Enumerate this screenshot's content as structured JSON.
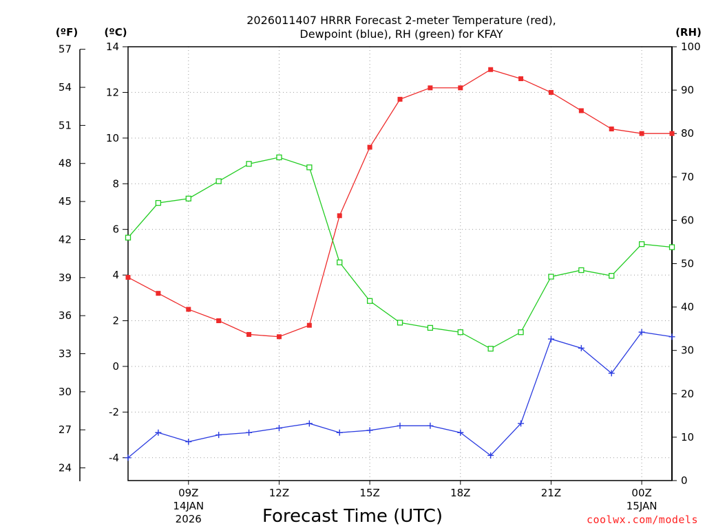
{
  "chart_data": {
    "type": "line",
    "title_line1": "2026011407 HRRR Forecast 2-meter Temperature (red),",
    "title_line2": "Dewpoint (blue), RH (green) for KFAY",
    "xlabel": "Forecast Time (UTC)",
    "credit": "coolwx.com/models",
    "units": {
      "f": "(ºF)",
      "c": "(ºC)",
      "rh": "(RH)"
    },
    "x": [
      "07Z",
      "08Z",
      "09Z",
      "10Z",
      "11Z",
      "12Z",
      "13Z",
      "14Z",
      "15Z",
      "16Z",
      "17Z",
      "18Z",
      "19Z",
      "20Z",
      "21Z",
      "22Z",
      "23Z",
      "00Z",
      "01Z"
    ],
    "x_ticks": [
      {
        "label": "09Z",
        "sub1": "14JAN",
        "sub2": "2026",
        "index": 2
      },
      {
        "label": "12Z",
        "sub1": "",
        "sub2": "",
        "index": 5
      },
      {
        "label": "15Z",
        "sub1": "",
        "sub2": "",
        "index": 8
      },
      {
        "label": "18Z",
        "sub1": "",
        "sub2": "",
        "index": 11
      },
      {
        "label": "21Z",
        "sub1": "",
        "sub2": "",
        "index": 14
      },
      {
        "label": "00Z",
        "sub1": "15JAN",
        "sub2": "",
        "index": 17
      }
    ],
    "y_celsius": {
      "range": [
        -5,
        14
      ],
      "ticks": [
        "-4",
        "-2",
        "0",
        "2",
        "4",
        "6",
        "8",
        "10",
        "12",
        "14"
      ]
    },
    "y_fahrenheit": {
      "ticks": [
        "24",
        "27",
        "30",
        "33",
        "36",
        "39",
        "42",
        "45",
        "48",
        "51",
        "54",
        "57"
      ]
    },
    "y_rh": {
      "range": [
        0,
        100
      ],
      "ticks": [
        "0",
        "10",
        "20",
        "30",
        "40",
        "50",
        "60",
        "70",
        "80",
        "90",
        "100"
      ]
    },
    "series": [
      {
        "name": "Temperature",
        "axis": "celsius",
        "color": "#ee2b2b",
        "marker": "filled-square",
        "values": [
          3.9,
          3.2,
          2.5,
          2.0,
          1.4,
          1.3,
          1.8,
          6.6,
          9.6,
          11.7,
          12.2,
          12.2,
          13.0,
          12.6,
          12.0,
          11.2,
          10.4,
          10.2,
          10.2
        ]
      },
      {
        "name": "Dewpoint",
        "axis": "celsius",
        "color": "#2b3ce0",
        "marker": "plus",
        "values": [
          -4.0,
          -2.9,
          -3.3,
          -3.0,
          -2.9,
          -2.7,
          -2.5,
          -2.9,
          -2.8,
          -2.6,
          -2.6,
          -2.9,
          -3.9,
          -2.5,
          1.2,
          0.8,
          -0.3,
          1.5,
          1.3
        ]
      },
      {
        "name": "RH",
        "axis": "rh",
        "color": "#22cc22",
        "marker": "hollow-square",
        "values": [
          56,
          64,
          65,
          69,
          73,
          74.5,
          72.2,
          50.3,
          41.4,
          36.4,
          35.2,
          34.2,
          30.4,
          34.2,
          47.0,
          48.5,
          47.2,
          54.5,
          53.8
        ]
      }
    ]
  }
}
